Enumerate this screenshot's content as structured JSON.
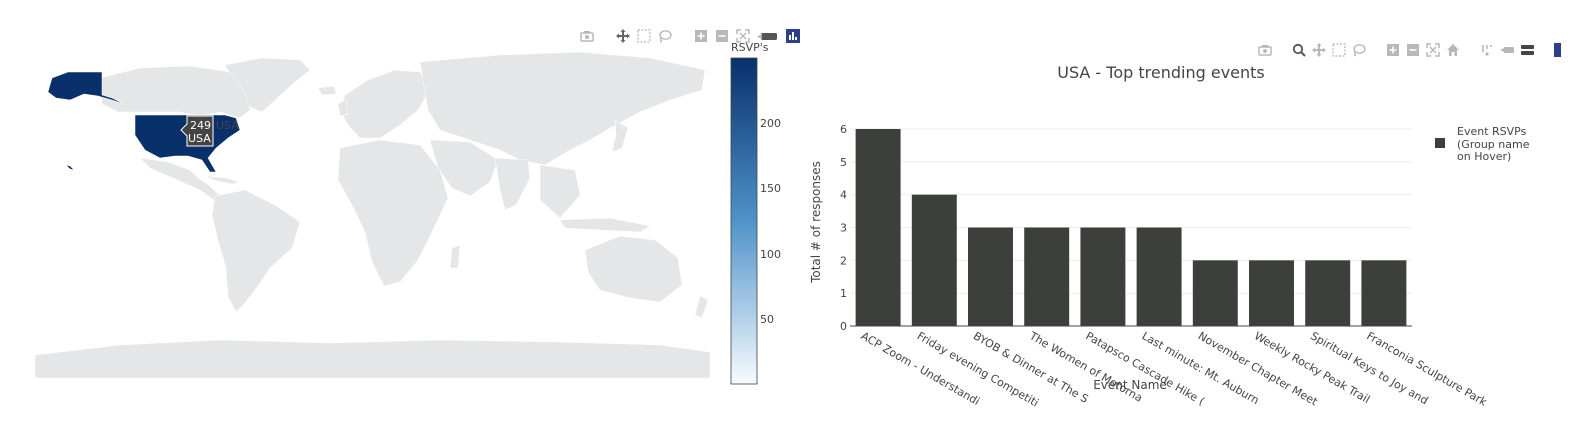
{
  "colors": {
    "bar": "#3d3f3b",
    "land": "#e5e6e8",
    "highlight": "#08306b",
    "ocean": "#ffffff",
    "colorbar_top": "#08306b",
    "colorbar_bottom": "#f7fbff",
    "tooltip_bg": "#444444",
    "modebar_icon": "#b8b8b8",
    "modebar_active": "#444444"
  },
  "map": {
    "modebar": [
      "camera-icon",
      "pan-icon",
      "box-select-icon",
      "lasso-select-icon",
      "zoom-in-icon",
      "zoom-out-icon",
      "reset-icon",
      "home-icon",
      "logo-icon"
    ],
    "colorbar": {
      "title": "RSVP's",
      "ticks": [
        "200",
        "150",
        "100",
        "50"
      ]
    },
    "hover": {
      "value": "249",
      "country": "USA",
      "trace": "USA"
    }
  },
  "chart_data": {
    "type": "bar",
    "title": "USA - Top trending events",
    "xlabel": "Event Name",
    "ylabel": "Total # of responses",
    "ylim": [
      0,
      6
    ],
    "yticks": [
      "0",
      "1",
      "2",
      "3",
      "4",
      "5",
      "6"
    ],
    "grid": true,
    "legend_position": "top-right",
    "categories": [
      "ACP Zoom - Understandi",
      "Friday evening Competiti",
      "BYOB & Dinner at The S",
      "The Women of Motorna",
      "Patapsco Cascade Hike (",
      "Last minute: Mt. Auburn",
      "November Chapter Meet",
      "Weekly Rocky Peak Trail",
      "Spiritual Keys to Joy and",
      "Franconia Sculpture Park"
    ],
    "series": [
      {
        "name": "Event RSVPs (Group name on Hover)",
        "values": [
          6,
          4,
          3,
          3,
          3,
          3,
          2,
          2,
          2,
          2
        ]
      }
    ]
  },
  "bar_modebar": [
    "camera-icon",
    "zoom-icon",
    "pan-icon",
    "box-select-icon",
    "lasso-select-icon",
    "zoom-in-icon",
    "zoom-out-icon",
    "autoscale-icon",
    "home-icon",
    "spike-icon",
    "hover-closest-icon",
    "hover-compare-icon",
    "logo-icon"
  ]
}
